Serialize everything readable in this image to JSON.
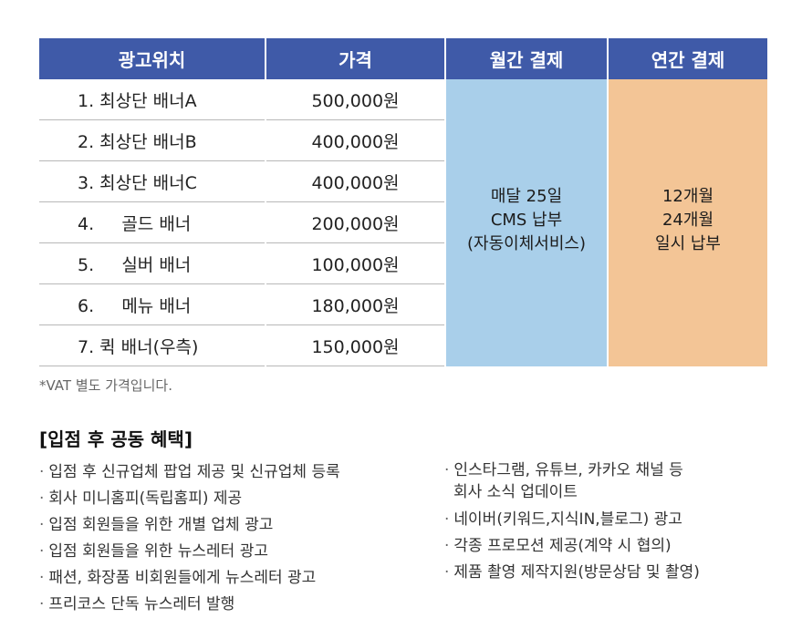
{
  "table": {
    "headers": [
      "광고위치",
      "가격",
      "월간 결제",
      "연간 결제"
    ],
    "rows": [
      {
        "name": "1. 최상단 배너A",
        "price": "500,000원"
      },
      {
        "name": "2. 최상단 배너B",
        "price": "400,000원"
      },
      {
        "name": "3. 최상단 배너C",
        "price": "400,000원"
      },
      {
        "name": "4.     골드 배너",
        "price": "200,000원"
      },
      {
        "name": "5.     실버 배너",
        "price": "100,000원"
      },
      {
        "name": "6.     메뉴 배너",
        "price": "180,000원"
      },
      {
        "name": "7. 퀵 배너(우측)",
        "price": "150,000원"
      }
    ],
    "monthly": [
      "매달 25일",
      "CMS 납부",
      "(자동이체서비스)"
    ],
    "yearly": [
      "12개월",
      "24개월",
      "일시 납부"
    ]
  },
  "vat_note": "*VAT 별도 가격입니다.",
  "benefits": {
    "title": "[입점 후 공동 혜택]",
    "bullet": "·",
    "left": [
      "입점 후 신규업체 팝업 제공 및 신규업체 등록",
      "회사 미니홈피(독립홈피) 제공",
      "입점 회원들을 위한 개별 업체 광고",
      "입점 회원들을 위한 뉴스레터 광고",
      "패션, 화장품 비회원들에게 뉴스레터 광고",
      "프리코스 단독 뉴스레터 발행"
    ],
    "right": [
      {
        "line1": "인스타그램, 유튜브, 카카오 채널 등",
        "line2": "회사 소식 업데이트"
      },
      {
        "line1": "네이버(키워드,지식IN,블로그) 광고"
      },
      {
        "line1": "각종 프로모션 제공(계약 시 협의)"
      },
      {
        "line1": "제품 촬영 제작지원(방문상담 및 촬영)"
      }
    ]
  }
}
